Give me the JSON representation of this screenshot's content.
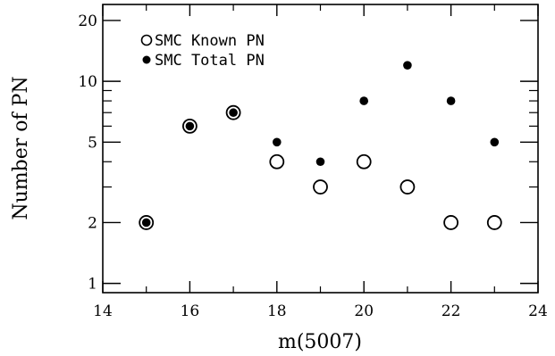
{
  "chart_data": {
    "type": "scatter",
    "xlabel": "m(5007)",
    "ylabel": "Number of PN",
    "xlim": [
      14,
      24
    ],
    "ylim": [
      0.9,
      24
    ],
    "yscale": "log",
    "grid": false,
    "legend_position": "top-left",
    "x_ticks": [
      {
        "value": 14,
        "label": "14"
      },
      {
        "value": 16,
        "label": "16"
      },
      {
        "value": 18,
        "label": "18"
      },
      {
        "value": 20,
        "label": "20"
      },
      {
        "value": 22,
        "label": "22"
      },
      {
        "value": 24,
        "label": "24"
      }
    ],
    "y_ticks": [
      {
        "value": 1,
        "label": "1"
      },
      {
        "value": 2,
        "label": "2"
      },
      {
        "value": 5,
        "label": "5"
      },
      {
        "value": 10,
        "label": "10"
      },
      {
        "value": 20,
        "label": "20"
      }
    ],
    "series": [
      {
        "name": "SMC Known PN",
        "marker": "open-circle",
        "color": "#000000",
        "x": [
          15,
          16,
          17,
          18,
          19,
          20,
          21,
          22,
          23
        ],
        "y": [
          2,
          6,
          7,
          4,
          3,
          4,
          3,
          2,
          2
        ]
      },
      {
        "name": "SMC Total PN",
        "marker": "filled-circle",
        "color": "#000000",
        "x": [
          15,
          16,
          17,
          18,
          19,
          20,
          21,
          22,
          23
        ],
        "y": [
          2,
          6,
          7,
          5,
          4,
          8,
          12,
          8,
          5
        ]
      }
    ]
  }
}
